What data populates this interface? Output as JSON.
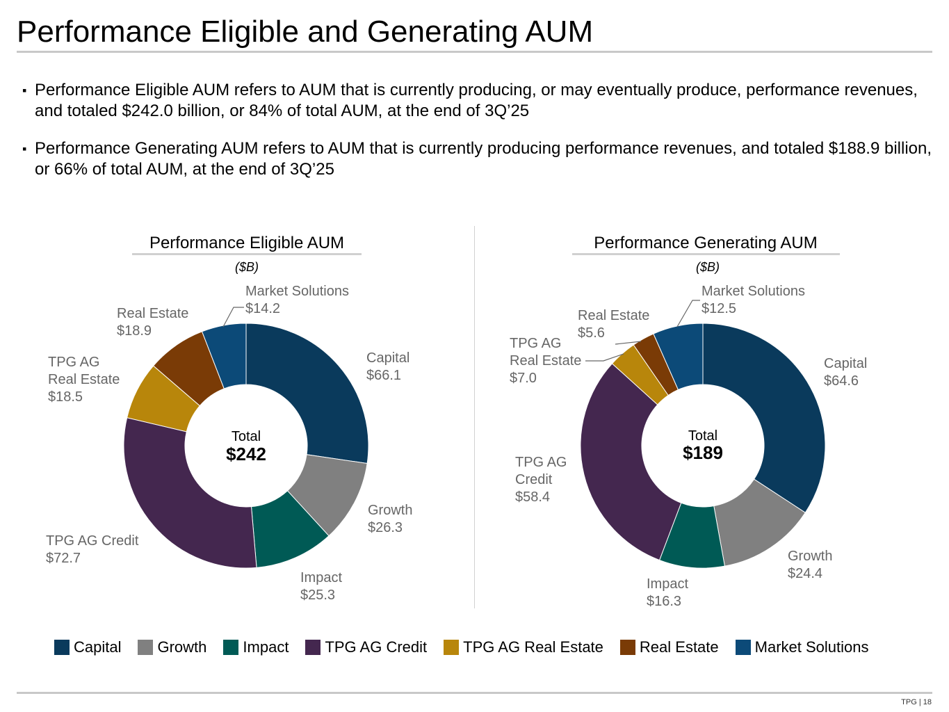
{
  "title": "Performance Eligible and Generating AUM",
  "bullets": [
    {
      "mark": "▪",
      "text": "Performance Eligible AUM refers to AUM that is currently producing, or may eventually produce, performance revenues, and totaled $242.0 billion, or 84% of total AUM, at the end of 3Q’25"
    },
    {
      "mark": "▪",
      "text": "Performance Generating AUM refers to AUM that is currently producing performance revenues, and totaled $188.9 billion, or 66% of total AUM, at the end of 3Q’25"
    }
  ],
  "colors": {
    "Capital": "#0a3a5c",
    "Growth": "#808080",
    "Impact": "#005a55",
    "TPG AG Credit": "#44274f",
    "TPG AG Real Estate": "#b8860b",
    "Real Estate": "#7a3b06",
    "Market Solutions": "#0c4a78"
  },
  "legend": [
    "Capital",
    "Growth",
    "Impact",
    "TPG AG Credit",
    "TPG AG Real Estate",
    "Real Estate",
    "Market Solutions"
  ],
  "chart_data": [
    {
      "type": "pie",
      "title": "Performance Eligible AUM",
      "subtitle": "($B)",
      "center_label": "Total",
      "center_value": "$242",
      "categories": [
        "Capital",
        "Growth",
        "Impact",
        "TPG AG Credit",
        "TPG AG Real Estate",
        "Real Estate",
        "Market Solutions"
      ],
      "values": [
        66.1,
        26.3,
        25.3,
        72.7,
        18.5,
        18.9,
        14.2
      ],
      "value_labels": [
        "$66.1",
        "$26.3",
        "$25.3",
        "$72.7",
        "$18.5",
        "$18.9",
        "$14.2"
      ]
    },
    {
      "type": "pie",
      "title": "Performance Generating AUM",
      "subtitle": "($B)",
      "center_label": "Total",
      "center_value": "$189",
      "categories": [
        "Capital",
        "Growth",
        "Impact",
        "TPG AG Credit",
        "TPG AG Real Estate",
        "Real Estate",
        "Market Solutions"
      ],
      "values": [
        64.6,
        24.4,
        16.3,
        58.4,
        7.0,
        5.6,
        12.5
      ],
      "value_labels": [
        "$64.6",
        "$24.4",
        "$16.3",
        "$58.4",
        "$7.0",
        "$5.6",
        "$12.5"
      ]
    }
  ],
  "footer": {
    "page": "TPG | 18"
  }
}
